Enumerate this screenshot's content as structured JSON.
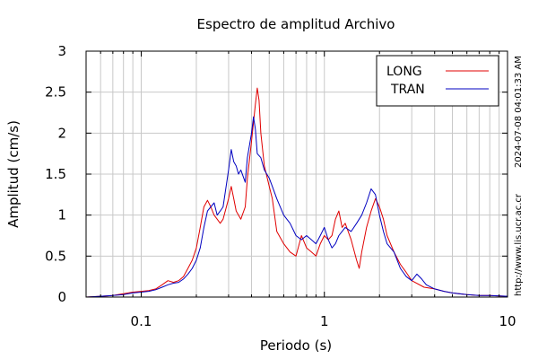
{
  "chart_data": {
    "type": "line",
    "title": "Espectro de amplitud Archivo",
    "xlabel": "Periodo (s)",
    "ylabel": "Amplitud (cm/s)",
    "x_scale": "log",
    "xlim": [
      0.05,
      10
    ],
    "ylim": [
      0,
      3
    ],
    "grid": true,
    "legend_position": "top-right",
    "x_ticks": [
      {
        "value": 0.1,
        "label": "0.1"
      },
      {
        "value": 1,
        "label": "1"
      },
      {
        "value": 10,
        "label": "10"
      }
    ],
    "y_ticks": [
      {
        "value": 0,
        "label": "0"
      },
      {
        "value": 0.5,
        "label": "0.5"
      },
      {
        "value": 1,
        "label": "1"
      },
      {
        "value": 1.5,
        "label": "1.5"
      },
      {
        "value": 2,
        "label": "2"
      },
      {
        "value": 2.5,
        "label": "2.5"
      },
      {
        "value": 3,
        "label": "3"
      }
    ],
    "series": [
      {
        "name": "LONG",
        "color": "#e00000",
        "points": [
          [
            0.05,
            0.0
          ],
          [
            0.06,
            0.01
          ],
          [
            0.07,
            0.02
          ],
          [
            0.08,
            0.04
          ],
          [
            0.09,
            0.06
          ],
          [
            0.1,
            0.07
          ],
          [
            0.11,
            0.08
          ],
          [
            0.12,
            0.1
          ],
          [
            0.13,
            0.15
          ],
          [
            0.14,
            0.2
          ],
          [
            0.15,
            0.18
          ],
          [
            0.16,
            0.2
          ],
          [
            0.17,
            0.25
          ],
          [
            0.18,
            0.35
          ],
          [
            0.19,
            0.45
          ],
          [
            0.2,
            0.6
          ],
          [
            0.21,
            0.85
          ],
          [
            0.22,
            1.1
          ],
          [
            0.23,
            1.18
          ],
          [
            0.24,
            1.1
          ],
          [
            0.25,
            1.0
          ],
          [
            0.26,
            0.95
          ],
          [
            0.27,
            0.9
          ],
          [
            0.28,
            0.95
          ],
          [
            0.3,
            1.2
          ],
          [
            0.31,
            1.35
          ],
          [
            0.32,
            1.2
          ],
          [
            0.33,
            1.05
          ],
          [
            0.35,
            0.95
          ],
          [
            0.37,
            1.1
          ],
          [
            0.38,
            1.45
          ],
          [
            0.4,
            1.9
          ],
          [
            0.42,
            2.35
          ],
          [
            0.43,
            2.55
          ],
          [
            0.44,
            2.4
          ],
          [
            0.45,
            2.0
          ],
          [
            0.47,
            1.6
          ],
          [
            0.5,
            1.35
          ],
          [
            0.52,
            1.2
          ],
          [
            0.55,
            0.8
          ],
          [
            0.6,
            0.65
          ],
          [
            0.65,
            0.55
          ],
          [
            0.7,
            0.5
          ],
          [
            0.75,
            0.75
          ],
          [
            0.8,
            0.6
          ],
          [
            0.85,
            0.55
          ],
          [
            0.9,
            0.5
          ],
          [
            0.95,
            0.65
          ],
          [
            1.0,
            0.75
          ],
          [
            1.05,
            0.7
          ],
          [
            1.1,
            0.75
          ],
          [
            1.15,
            0.95
          ],
          [
            1.2,
            1.05
          ],
          [
            1.25,
            0.85
          ],
          [
            1.3,
            0.9
          ],
          [
            1.4,
            0.7
          ],
          [
            1.5,
            0.45
          ],
          [
            1.55,
            0.35
          ],
          [
            1.6,
            0.55
          ],
          [
            1.7,
            0.85
          ],
          [
            1.8,
            1.05
          ],
          [
            1.9,
            1.2
          ],
          [
            2.0,
            1.1
          ],
          [
            2.1,
            0.95
          ],
          [
            2.2,
            0.75
          ],
          [
            2.4,
            0.55
          ],
          [
            2.6,
            0.4
          ],
          [
            2.8,
            0.3
          ],
          [
            3.0,
            0.2
          ],
          [
            3.5,
            0.12
          ],
          [
            4.0,
            0.1
          ],
          [
            4.5,
            0.07
          ],
          [
            5.0,
            0.05
          ],
          [
            6.0,
            0.03
          ],
          [
            7.0,
            0.02
          ],
          [
            8.0,
            0.02
          ],
          [
            10.0,
            0.01
          ]
        ]
      },
      {
        "name": "TRAN",
        "color": "#0000c0",
        "points": [
          [
            0.05,
            0.0
          ],
          [
            0.06,
            0.01
          ],
          [
            0.07,
            0.02
          ],
          [
            0.08,
            0.03
          ],
          [
            0.09,
            0.05
          ],
          [
            0.1,
            0.06
          ],
          [
            0.11,
            0.07
          ],
          [
            0.12,
            0.09
          ],
          [
            0.13,
            0.12
          ],
          [
            0.14,
            0.15
          ],
          [
            0.15,
            0.17
          ],
          [
            0.16,
            0.18
          ],
          [
            0.17,
            0.22
          ],
          [
            0.18,
            0.28
          ],
          [
            0.19,
            0.35
          ],
          [
            0.2,
            0.45
          ],
          [
            0.21,
            0.6
          ],
          [
            0.22,
            0.85
          ],
          [
            0.23,
            1.05
          ],
          [
            0.24,
            1.1
          ],
          [
            0.25,
            1.15
          ],
          [
            0.26,
            1.0
          ],
          [
            0.27,
            1.05
          ],
          [
            0.28,
            1.1
          ],
          [
            0.3,
            1.55
          ],
          [
            0.31,
            1.8
          ],
          [
            0.32,
            1.65
          ],
          [
            0.33,
            1.6
          ],
          [
            0.34,
            1.5
          ],
          [
            0.35,
            1.55
          ],
          [
            0.37,
            1.4
          ],
          [
            0.38,
            1.7
          ],
          [
            0.4,
            2.0
          ],
          [
            0.41,
            2.2
          ],
          [
            0.42,
            2.05
          ],
          [
            0.43,
            1.75
          ],
          [
            0.45,
            1.7
          ],
          [
            0.47,
            1.55
          ],
          [
            0.5,
            1.45
          ],
          [
            0.52,
            1.35
          ],
          [
            0.55,
            1.2
          ],
          [
            0.6,
            1.0
          ],
          [
            0.65,
            0.9
          ],
          [
            0.7,
            0.75
          ],
          [
            0.75,
            0.7
          ],
          [
            0.8,
            0.75
          ],
          [
            0.85,
            0.7
          ],
          [
            0.9,
            0.65
          ],
          [
            0.95,
            0.75
          ],
          [
            1.0,
            0.85
          ],
          [
            1.05,
            0.7
          ],
          [
            1.1,
            0.6
          ],
          [
            1.15,
            0.65
          ],
          [
            1.2,
            0.75
          ],
          [
            1.3,
            0.85
          ],
          [
            1.4,
            0.8
          ],
          [
            1.5,
            0.9
          ],
          [
            1.6,
            1.0
          ],
          [
            1.7,
            1.15
          ],
          [
            1.8,
            1.32
          ],
          [
            1.9,
            1.25
          ],
          [
            2.0,
            1.0
          ],
          [
            2.1,
            0.8
          ],
          [
            2.2,
            0.65
          ],
          [
            2.4,
            0.55
          ],
          [
            2.6,
            0.35
          ],
          [
            2.8,
            0.25
          ],
          [
            3.0,
            0.2
          ],
          [
            3.2,
            0.28
          ],
          [
            3.4,
            0.22
          ],
          [
            3.6,
            0.15
          ],
          [
            4.0,
            0.1
          ],
          [
            4.5,
            0.07
          ],
          [
            5.0,
            0.05
          ],
          [
            6.0,
            0.03
          ],
          [
            7.0,
            0.02
          ],
          [
            8.0,
            0.02
          ],
          [
            10.0,
            0.01
          ]
        ]
      }
    ]
  },
  "side_note_url": "http://www.lis.ucr.ac.cr",
  "side_note_date": "2024-07-08 04:01:33 AM"
}
